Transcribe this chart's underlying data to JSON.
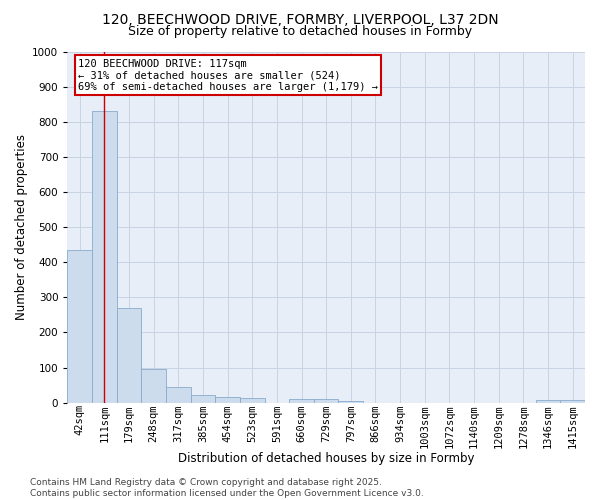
{
  "title_line1": "120, BEECHWOOD DRIVE, FORMBY, LIVERPOOL, L37 2DN",
  "title_line2": "Size of property relative to detached houses in Formby",
  "xlabel": "Distribution of detached houses by size in Formby",
  "ylabel": "Number of detached properties",
  "bin_labels": [
    "42sqm",
    "111sqm",
    "179sqm",
    "248sqm",
    "317sqm",
    "385sqm",
    "454sqm",
    "523sqm",
    "591sqm",
    "660sqm",
    "729sqm",
    "797sqm",
    "866sqm",
    "934sqm",
    "1003sqm",
    "1072sqm",
    "1140sqm",
    "1209sqm",
    "1278sqm",
    "1346sqm",
    "1415sqm"
  ],
  "bar_heights": [
    435,
    830,
    270,
    97,
    46,
    23,
    17,
    12,
    0,
    10,
    10,
    5,
    0,
    0,
    0,
    0,
    0,
    0,
    0,
    8,
    8
  ],
  "bar_color": "#ccdcec",
  "bar_edge_color": "#88aacc",
  "vline_x": 1,
  "vline_color": "#cc0000",
  "annotation_line1": "120 BEECHWOOD DRIVE: 117sqm",
  "annotation_line2": "← 31% of detached houses are smaller (524)",
  "annotation_line3": "69% of semi-detached houses are larger (1,179) →",
  "annotation_box_color": "#ffffff",
  "annotation_box_edge_color": "#cc0000",
  "ylim": [
    0,
    1000
  ],
  "yticks": [
    0,
    100,
    200,
    300,
    400,
    500,
    600,
    700,
    800,
    900,
    1000
  ],
  "grid_color": "#c8d4e4",
  "background_color": "#e8eef8",
  "footer_text": "Contains HM Land Registry data © Crown copyright and database right 2025.\nContains public sector information licensed under the Open Government Licence v3.0.",
  "title_fontsize": 10,
  "subtitle_fontsize": 9,
  "axis_label_fontsize": 8.5,
  "tick_label_fontsize": 7.5,
  "annotation_fontsize": 7.5,
  "footer_fontsize": 6.5
}
